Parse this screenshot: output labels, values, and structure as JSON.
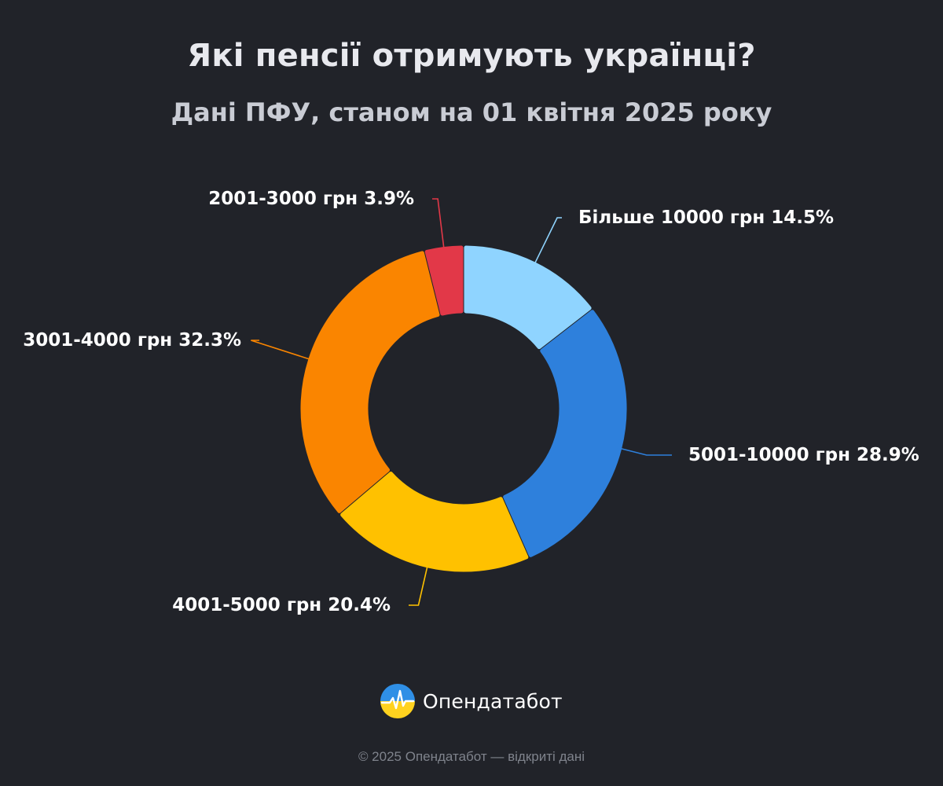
{
  "title": "Які пенсії отримують українці?",
  "subtitle": "Дані ПФУ, станом на 01 квітня 2025 року",
  "chart_data": {
    "type": "pie",
    "variant": "donut",
    "categories": [
      "Більше 10000 грн",
      "5001-10000 грн",
      "4001-5000 грн",
      "3001-4000 грн",
      "2001-3000 грн"
    ],
    "values": [
      14.5,
      28.9,
      20.4,
      32.3,
      3.9
    ],
    "unit": "%",
    "colors": [
      "#8fd4ff",
      "#2e80dc",
      "#ffc100",
      "#fa8500",
      "#e23848"
    ],
    "direction": "clockwise",
    "start": "top",
    "legend": "none"
  },
  "brand": {
    "name": "Опендатабот",
    "icon": "opendatabot-logo-icon"
  },
  "footer": {
    "copyright": "© 2025 Опендатабот — відкриті дані"
  }
}
